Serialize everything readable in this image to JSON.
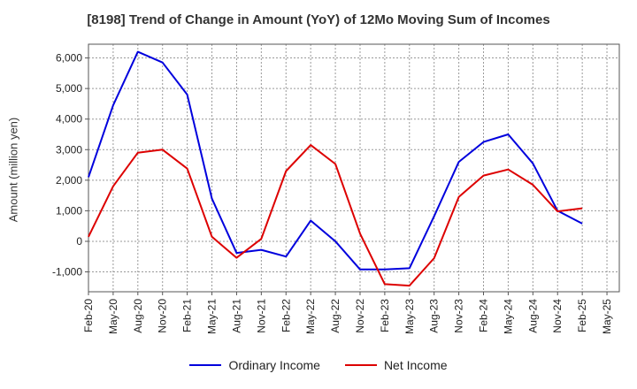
{
  "chart_data": {
    "type": "line",
    "title": "[8198]  Trend of Change in Amount (YoY) of 12Mo Moving Sum of Incomes",
    "xlabel": "",
    "ylabel": "Amount (million yen)",
    "ylim": [
      -1650,
      6450
    ],
    "y_ticks": [
      -1000,
      0,
      1000,
      2000,
      3000,
      4000,
      5000,
      6000
    ],
    "y_tick_labels": [
      "-1,000",
      "0",
      "1,000",
      "2,000",
      "3,000",
      "4,000",
      "5,000",
      "6,000"
    ],
    "x_tick_labels": [
      "Feb-20",
      "May-20",
      "Aug-20",
      "Nov-20",
      "Feb-21",
      "May-21",
      "Aug-21",
      "Nov-21",
      "Feb-22",
      "May-22",
      "Aug-22",
      "Nov-22",
      "Feb-23",
      "May-23",
      "Aug-23",
      "Nov-23",
      "Feb-24",
      "May-24",
      "Aug-24",
      "Nov-24",
      "Feb-25",
      "May-25"
    ],
    "categories": [
      "Feb-20",
      "May-20",
      "Aug-20",
      "Nov-20",
      "Feb-21",
      "May-21",
      "Aug-21",
      "Nov-21",
      "Feb-22",
      "May-22",
      "Aug-22",
      "Nov-22",
      "Feb-23",
      "May-23",
      "Aug-23",
      "Nov-23",
      "Feb-24",
      "May-24",
      "Aug-24",
      "Nov-24",
      "Feb-25",
      "May-25"
    ],
    "grid": true,
    "legend": "bottom",
    "series": [
      {
        "name": "Ordinary Income",
        "color": "#0000dd",
        "values": [
          2100,
          4450,
          6200,
          5850,
          4800,
          1400,
          -380,
          -280,
          -500,
          680,
          0,
          -920,
          -920,
          -880,
          820,
          2600,
          3250,
          3500,
          2550,
          1000,
          580,
          null
        ]
      },
      {
        "name": "Net Income",
        "color": "#dd0000",
        "values": [
          150,
          1800,
          2900,
          3000,
          2380,
          150,
          -540,
          80,
          2300,
          3150,
          2530,
          250,
          -1400,
          -1450,
          -550,
          1450,
          2150,
          2350,
          1850,
          980,
          1080,
          null
        ]
      }
    ]
  }
}
